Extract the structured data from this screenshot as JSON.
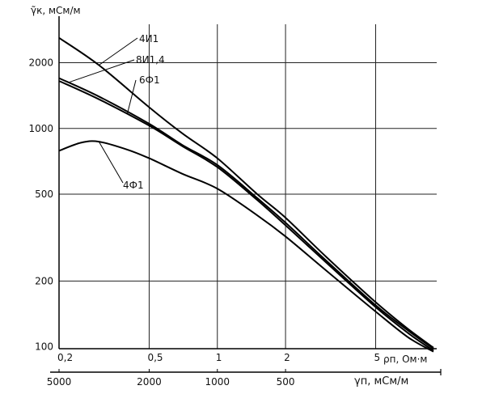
{
  "chart_data": {
    "type": "line",
    "title": "",
    "ylabel": "γ̃к, мСм/м",
    "xlabel": "ρп, Ом·м",
    "xlabel2": "γп, мСм/м",
    "xscale": "log",
    "yscale": "log",
    "xlim": [
      0.2,
      9.3
    ],
    "ylim": [
      98,
      3000
    ],
    "grid": true,
    "x_ticks": [
      {
        "value": 0.2,
        "label": "0,2"
      },
      {
        "value": 0.5,
        "label": "0,5"
      },
      {
        "value": 1,
        "label": "1"
      },
      {
        "value": 2,
        "label": "2"
      },
      {
        "value": 5,
        "label": "5"
      }
    ],
    "x2_ticks": [
      {
        "value": 0.2,
        "label": "5000"
      },
      {
        "value": 0.5,
        "label": "2000"
      },
      {
        "value": 1,
        "label": "1000"
      },
      {
        "value": 2,
        "label": "500"
      }
    ],
    "y_ticks": [
      {
        "value": 100,
        "label": "100"
      },
      {
        "value": 200,
        "label": "200"
      },
      {
        "value": 500,
        "label": "500"
      },
      {
        "value": 1000,
        "label": "1000"
      },
      {
        "value": 2000,
        "label": "2000"
      }
    ],
    "series": [
      {
        "name": "4И1",
        "x": [
          0.2,
          0.3,
          0.5,
          0.7,
          1,
          1.5,
          2,
          3,
          5,
          7,
          9
        ],
        "y": [
          2600,
          1950,
          1250,
          950,
          730,
          500,
          390,
          260,
          160,
          120,
          99
        ]
      },
      {
        "name": "8И1,4",
        "x": [
          0.2,
          0.3,
          0.5,
          0.7,
          1,
          1.5,
          2,
          3,
          5,
          7,
          9
        ],
        "y": [
          1700,
          1400,
          1050,
          840,
          680,
          480,
          370,
          250,
          155,
          118,
          98
        ]
      },
      {
        "name": "6Ф1",
        "x": [
          0.2,
          0.3,
          0.5,
          0.7,
          1,
          1.5,
          2,
          3,
          5,
          7,
          9
        ],
        "y": [
          1650,
          1360,
          1030,
          830,
          665,
          470,
          360,
          245,
          152,
          115,
          96
        ]
      },
      {
        "name": "4Ф1",
        "x": [
          0.2,
          0.25,
          0.3,
          0.4,
          0.5,
          0.7,
          1,
          1.5,
          2,
          3,
          5,
          7,
          9
        ],
        "y": [
          790,
          860,
          870,
          800,
          730,
          620,
          530,
          400,
          320,
          225,
          145,
          110,
          95
        ]
      }
    ]
  }
}
